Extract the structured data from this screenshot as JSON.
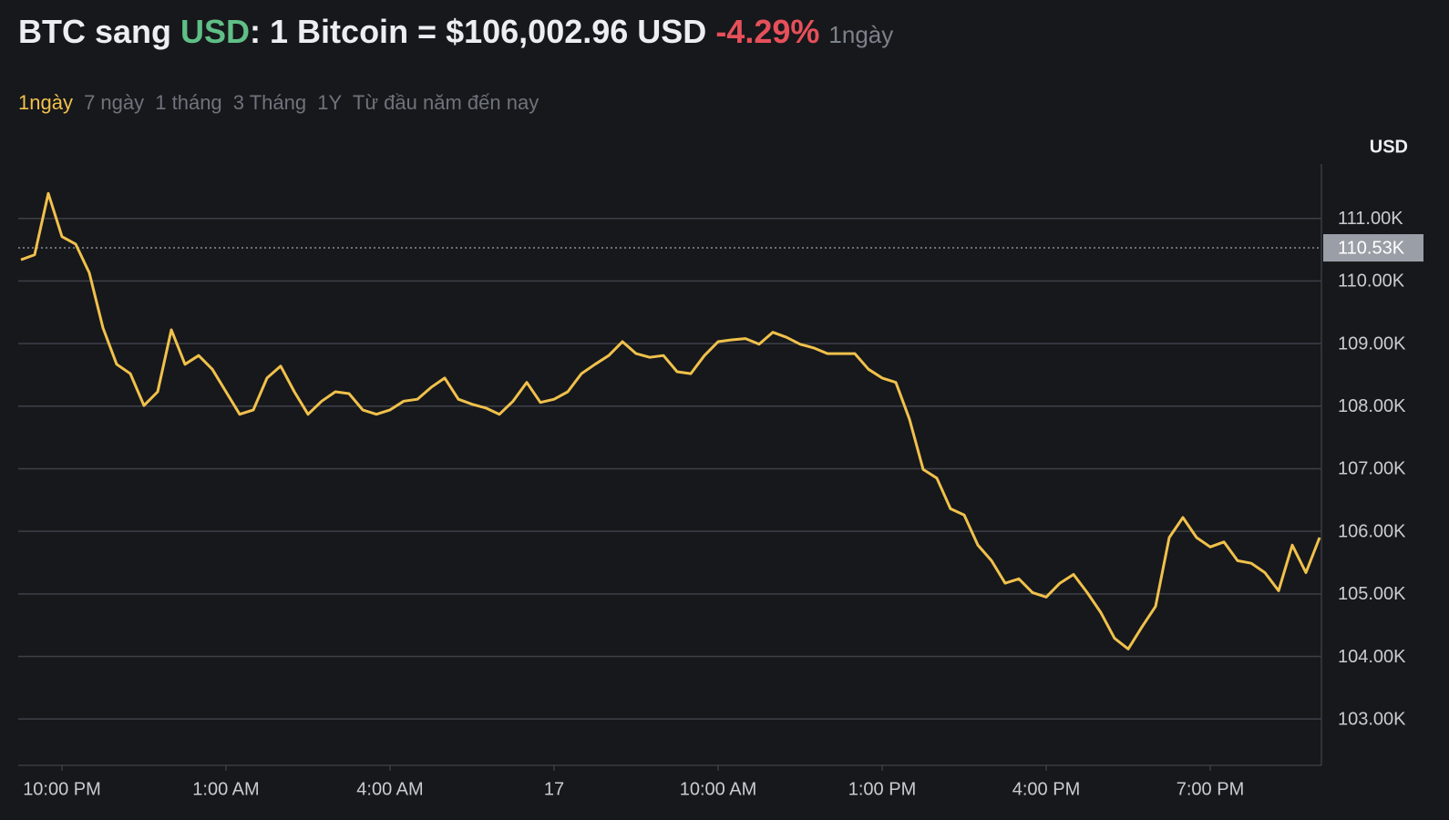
{
  "header": {
    "prefix": "BTC sang",
    "quote": "USD",
    "rate": ": 1 Bitcoin = $106,002.96 USD",
    "change": "-4.29%",
    "period": "1ngày"
  },
  "ranges": [
    "1ngày",
    "7 ngày",
    "1 tháng",
    "3 Tháng",
    "1Y",
    "Từ đầu năm đến nay"
  ],
  "chart_data": {
    "type": "line",
    "y_label": "USD",
    "color": "#f0c14b",
    "grid": true,
    "categories": [
      null,
      null,
      null,
      "10:00 PM",
      null,
      null,
      null,
      null,
      null,
      null,
      null,
      null,
      null,
      null,
      null,
      "1:00 AM",
      null,
      null,
      null,
      null,
      null,
      null,
      null,
      null,
      null,
      null,
      null,
      "4:00 AM",
      null,
      null,
      null,
      null,
      null,
      null,
      null,
      null,
      null,
      null,
      null,
      "17",
      null,
      null,
      null,
      null,
      null,
      null,
      null,
      null,
      null,
      null,
      null,
      "10:00 AM",
      null,
      null,
      null,
      null,
      null,
      null,
      null,
      null,
      null,
      null,
      null,
      "1:00 PM",
      null,
      null,
      null,
      null,
      null,
      null,
      null,
      null,
      null,
      null,
      null,
      "4:00 PM",
      null,
      null,
      null,
      null,
      null,
      null,
      null,
      null,
      null,
      null,
      null,
      "7:00 PM",
      null,
      null,
      null,
      null,
      null,
      null,
      null,
      null
    ],
    "values": [
      110340,
      110420,
      111400,
      110710,
      110590,
      110130,
      109250,
      108670,
      108520,
      108010,
      108230,
      109220,
      108670,
      108810,
      108590,
      108230,
      107870,
      107940,
      108450,
      108640,
      108230,
      107870,
      108080,
      108230,
      108200,
      107940,
      107870,
      107940,
      108080,
      108110,
      108300,
      108450,
      108110,
      108030,
      107970,
      107870,
      108080,
      108380,
      108060,
      108110,
      108230,
      108520,
      108670,
      108810,
      109030,
      108840,
      108780,
      108810,
      108550,
      108520,
      108810,
      109030,
      109060,
      109080,
      108990,
      109180,
      109100,
      108990,
      108930,
      108840,
      108840,
      108840,
      108590,
      108450,
      108380,
      107790,
      106990,
      106850,
      106360,
      106260,
      105780,
      105530,
      105170,
      105240,
      105020,
      104950,
      105170,
      105310,
      105020,
      104700,
      104290,
      104120,
      104470,
      104800,
      105900,
      106220,
      105900,
      105750,
      105830,
      105530,
      105490,
      105340,
      105050,
      105780,
      105340,
      105900
    ],
    "ylim": [
      102260,
      111870
    ],
    "yticks": [
      {
        "value": 103000,
        "label": "103.00K"
      },
      {
        "value": 104000,
        "label": "104.00K"
      },
      {
        "value": 105000,
        "label": "105.00K"
      },
      {
        "value": 106000,
        "label": "106.00K"
      },
      {
        "value": 107000,
        "label": "107.00K"
      },
      {
        "value": 108000,
        "label": "108.00K"
      },
      {
        "value": 109000,
        "label": "109.00K"
      },
      {
        "value": 110000,
        "label": "110.00K"
      },
      {
        "value": 111000,
        "label": "111.00K"
      }
    ],
    "reference_line": {
      "value": 110530,
      "label": "110.53K"
    }
  }
}
